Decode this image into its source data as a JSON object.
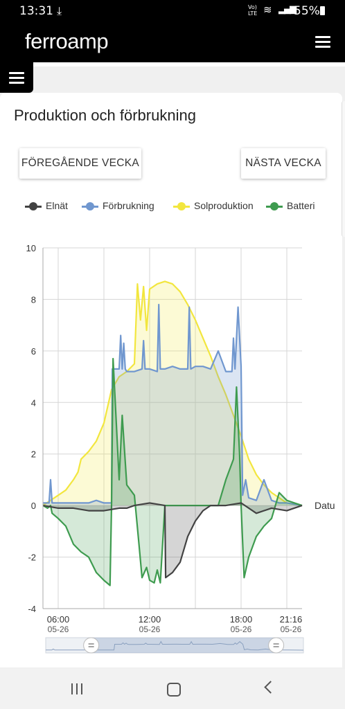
{
  "status_bar": {
    "time": "13:31",
    "download_icon": "download-icon",
    "volte_label": "Vo) LTE",
    "battery_percent": "55%"
  },
  "app": {
    "logo_part1": "ferro",
    "logo_part2": "amp",
    "menu_icon": "hamburger-menu-icon"
  },
  "card": {
    "title": "Produktion och förbrukning",
    "prev_week_label": "FÖREGÅENDE VECKA",
    "next_week_label": "NÄSTA VECKA"
  },
  "legend": [
    {
      "label": "Elnät",
      "color": "#424242"
    },
    {
      "label": "Förbrukning",
      "color": "#7097cf"
    },
    {
      "label": "Solproduktion",
      "color": "#f2e63e"
    },
    {
      "label": "Batteri",
      "color": "#3e9b4f"
    }
  ],
  "chart_data": {
    "type": "area",
    "ylim": [
      -4,
      10
    ],
    "yticks": [
      "10",
      "8",
      "6",
      "4",
      "2",
      "0",
      "-2",
      "-4"
    ],
    "xlabel": "Datu",
    "xlim": [
      5.0,
      22.0
    ],
    "xticks": [
      {
        "hour": 6.0,
        "time": "06:00",
        "date": "05-26"
      },
      {
        "hour": 12.0,
        "time": "12:00",
        "date": "05-26"
      },
      {
        "hour": 18.0,
        "time": "18:00",
        "date": "05-26"
      },
      {
        "hour": 21.27,
        "time": "21:16",
        "date": "05-26"
      }
    ],
    "series": [
      {
        "name": "Solproduktion",
        "color": "#f2e63e",
        "x": [
          5.0,
          5.5,
          6.0,
          6.5,
          7.0,
          7.3,
          7.5,
          8.0,
          8.5,
          9.0,
          9.5,
          10.0,
          10.5,
          11.0,
          11.2,
          11.4,
          11.6,
          11.8,
          12.0,
          12.5,
          13.0,
          13.5,
          14.0,
          14.5,
          15.0,
          15.5,
          16.0,
          16.5,
          17.0,
          17.5,
          18.0,
          18.5,
          19.0,
          19.5,
          20.0,
          20.5,
          21.0,
          21.5,
          22.0
        ],
        "y": [
          0.0,
          0.2,
          0.4,
          0.6,
          1.0,
          1.3,
          1.8,
          2.1,
          2.5,
          3.2,
          4.5,
          5.0,
          5.2,
          5.5,
          8.6,
          7.2,
          8.5,
          6.8,
          8.4,
          8.6,
          8.7,
          8.6,
          8.3,
          7.8,
          7.2,
          6.5,
          5.8,
          5.0,
          4.3,
          3.5,
          2.7,
          1.8,
          1.2,
          0.8,
          0.5,
          0.3,
          0.1,
          0.05,
          0.0
        ]
      },
      {
        "name": "Förbrukning",
        "color": "#7097cf",
        "x": [
          5.0,
          5.4,
          5.5,
          5.6,
          6.0,
          7.0,
          8.0,
          8.5,
          9.0,
          9.5,
          9.55,
          10.0,
          10.1,
          10.2,
          10.3,
          10.4,
          10.5,
          11.0,
          11.5,
          11.6,
          11.7,
          12.0,
          12.5,
          12.6,
          12.7,
          13.0,
          13.5,
          14.0,
          14.5,
          14.6,
          14.7,
          15.0,
          15.5,
          16.0,
          16.5,
          17.0,
          17.4,
          17.5,
          17.6,
          17.8,
          18.0,
          18.1,
          18.3,
          18.5,
          19.0,
          19.5,
          20.0,
          20.5,
          21.0,
          22.0
        ],
        "y": [
          0.1,
          0.1,
          1.0,
          0.1,
          0.1,
          0.1,
          0.1,
          0.2,
          0.1,
          0.1,
          5.3,
          5.3,
          6.6,
          5.3,
          6.3,
          5.3,
          5.2,
          5.2,
          5.3,
          6.4,
          5.3,
          5.3,
          5.2,
          7.8,
          5.3,
          5.3,
          5.4,
          5.3,
          5.3,
          7.7,
          5.3,
          5.4,
          5.4,
          5.3,
          6.0,
          5.2,
          5.2,
          6.5,
          5.3,
          7.7,
          5.4,
          0.4,
          1.0,
          0.3,
          0.2,
          1.0,
          0.2,
          0.1,
          0.1,
          0.0
        ]
      },
      {
        "name": "Batteri",
        "color": "#3e9b4f",
        "x": [
          5.0,
          5.3,
          5.5,
          5.6,
          6.0,
          6.5,
          7.0,
          7.5,
          8.0,
          8.5,
          9.0,
          9.4,
          9.5,
          9.6,
          10.0,
          10.2,
          10.5,
          11.0,
          11.3,
          11.5,
          11.8,
          12.0,
          12.3,
          12.5,
          12.7,
          13.0,
          13.5,
          14.0,
          14.5,
          15.0,
          15.5,
          16.0,
          16.5,
          17.0,
          17.5,
          17.7,
          17.9,
          18.0,
          18.2,
          18.5,
          19.0,
          19.5,
          20.0,
          20.5,
          21.0,
          21.5,
          22.0
        ],
        "y": [
          0.0,
          -0.1,
          0.0,
          -0.3,
          -0.5,
          -0.8,
          -1.5,
          -1.8,
          -2.0,
          -2.6,
          -2.9,
          -3.1,
          0.0,
          5.7,
          1.0,
          3.5,
          0.8,
          0.4,
          -1.5,
          -2.8,
          -2.4,
          -2.9,
          -3.0,
          -2.5,
          -3.0,
          0.0,
          0.0,
          0.0,
          0.0,
          0.0,
          0.0,
          0.0,
          0.0,
          1.0,
          1.8,
          4.6,
          2.0,
          0.0,
          -2.8,
          -2.0,
          -1.2,
          -0.8,
          -0.5,
          0.5,
          0.2,
          0.1,
          0.0
        ]
      },
      {
        "name": "Elnät",
        "color": "#424242",
        "x": [
          5.0,
          6.0,
          7.0,
          8.0,
          9.0,
          10.0,
          10.5,
          11.0,
          12.0,
          13.0,
          13.05,
          13.5,
          14.0,
          14.5,
          15.0,
          15.5,
          16.0,
          17.0,
          18.0,
          19.0,
          20.0,
          21.0,
          22.0
        ],
        "y": [
          0.0,
          -0.1,
          -0.1,
          -0.2,
          -0.2,
          -0.1,
          -0.1,
          0.0,
          0.1,
          0.0,
          -2.8,
          -2.6,
          -2.2,
          -1.2,
          -0.6,
          -0.2,
          0.0,
          0.0,
          0.1,
          -0.3,
          -0.1,
          -0.2,
          0.0
        ]
      }
    ],
    "range_selector": {
      "start_hour": 8.0,
      "end_hour": 20.2
    }
  }
}
